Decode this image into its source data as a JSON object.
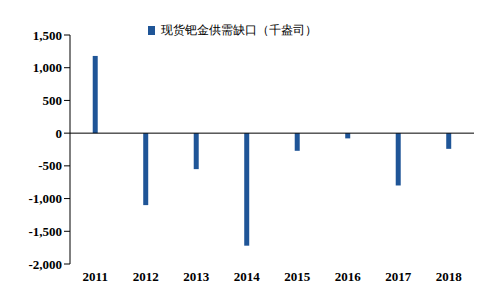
{
  "chart_data": {
    "type": "bar",
    "categories": [
      "2011",
      "2012",
      "2013",
      "2014",
      "2015",
      "2016",
      "2017",
      "2018"
    ],
    "series": [
      {
        "name": "现货钯金供需缺口（千盎司）",
        "color": "#1f5597",
        "values": [
          1180,
          -1100,
          -550,
          -1720,
          -270,
          -80,
          -800,
          -240
        ]
      }
    ],
    "ylim": [
      -2000,
      1500
    ],
    "yticks": [
      {
        "value": -2000,
        "label": "-2,000"
      },
      {
        "value": -1500,
        "label": "-1,500"
      },
      {
        "value": -1000,
        "label": "-1,000"
      },
      -500,
      0,
      500,
      {
        "value": 1000,
        "label": "1,000"
      },
      {
        "value": 1500,
        "label": "1,500"
      }
    ],
    "legend": "top",
    "grid": false
  }
}
